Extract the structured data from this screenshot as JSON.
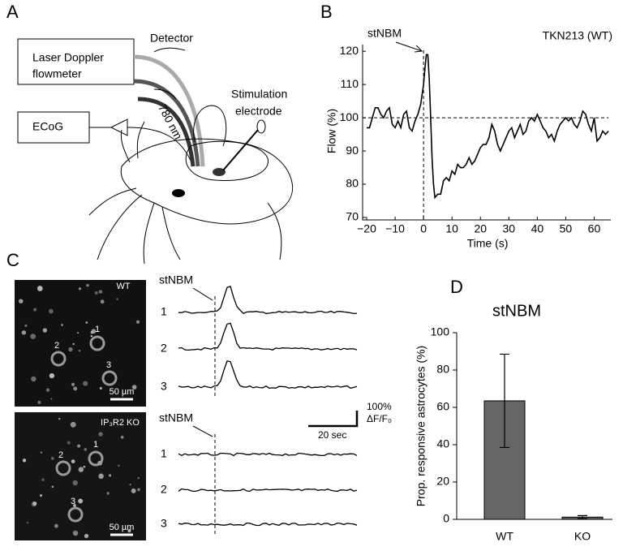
{
  "panel_a": {
    "label": "A",
    "flowmeter": [
      "Laser Doppler",
      "flowmeter"
    ],
    "ecog": "ECoG",
    "detector": "Detector",
    "wavelength": "780 nm",
    "electrode": [
      "Stimulation",
      "electrode"
    ]
  },
  "panel_c": {
    "label": "C",
    "wt": {
      "image_label": "WT",
      "scale": "50 µm",
      "cells": [
        "1",
        "2",
        "3"
      ],
      "stim": "stNBM",
      "traces": [
        "1",
        "2",
        "3"
      ]
    },
    "ko": {
      "image_label": "IP₃R2 KO",
      "scale": "50 µm",
      "cells": [
        "1",
        "2",
        "3"
      ],
      "stim": "stNBM",
      "traces": [
        "1",
        "2",
        "3"
      ]
    },
    "scale_bar": {
      "y": "100%",
      "y_unit": "ΔF/F₀",
      "x": "20 sec"
    }
  },
  "chart_data": [
    {
      "type": "line",
      "panel": "B",
      "xlabel": "Time (s)",
      "ylabel": "Flow (%)",
      "annotations": [
        "stNBM",
        "TKN213 (WT)"
      ],
      "reference_lines": {
        "x": 0,
        "y": 100
      },
      "xlim": [
        -20,
        65
      ],
      "ylim": [
        70,
        122
      ],
      "xticks": [
        {
          "value": -20,
          "label": "−20"
        },
        {
          "value": -10,
          "label": "−10"
        },
        0,
        10,
        20,
        30,
        40,
        50,
        60
      ],
      "yticks": [
        70,
        80,
        90,
        100,
        110,
        120
      ],
      "x": [
        -20,
        -19,
        -18,
        -17,
        -16,
        -15,
        -14,
        -13,
        -12,
        -11,
        -10,
        -9,
        -8,
        -7,
        -6,
        -5,
        -4,
        -3,
        -2,
        -1,
        0,
        0.5,
        1,
        1.5,
        2,
        2.5,
        3,
        3.5,
        4,
        5,
        6,
        7,
        8,
        9,
        10,
        11,
        12,
        13,
        14,
        15,
        16,
        17,
        18,
        19,
        20,
        21,
        22,
        23,
        24,
        25,
        26,
        27,
        28,
        29,
        30,
        31,
        32,
        33,
        34,
        35,
        36,
        37,
        38,
        39,
        40,
        41,
        42,
        43,
        44,
        45,
        46,
        47,
        48,
        49,
        50,
        51,
        52,
        53,
        54,
        55,
        56,
        57,
        58,
        59,
        60,
        61,
        62,
        63,
        64,
        65
      ],
      "series": [
        {
          "color": "#000000",
          "values": [
            97,
            97,
            100,
            103,
            103,
            101,
            100,
            102,
            103,
            98,
            97,
            99,
            97,
            101,
            102,
            97,
            96,
            99,
            101,
            104,
            110,
            115,
            119,
            119,
            112,
            100,
            88,
            80,
            76,
            77,
            77,
            81,
            82,
            81,
            84,
            83,
            86,
            85,
            85,
            86,
            88,
            86,
            87,
            89,
            91,
            92,
            92,
            94,
            98,
            96,
            92,
            90,
            92,
            94,
            96,
            97,
            94,
            96,
            98,
            95,
            96,
            99,
            100,
            99,
            101,
            99,
            97,
            96,
            94,
            95,
            93,
            96,
            98,
            99,
            100,
            99,
            100,
            98,
            97,
            99,
            102,
            101,
            98,
            96,
            100,
            93,
            94,
            96,
            95,
            96
          ]
        }
      ]
    },
    {
      "type": "bar",
      "panel": "D",
      "title": "stNBM",
      "ylabel": "Prop. responsive astrocytes (%)",
      "categories": [
        "WT",
        "KO"
      ],
      "values": [
        63.5,
        1.2
      ],
      "errors": [
        25,
        0.8
      ],
      "color": "#666666",
      "ylim": [
        0,
        100
      ],
      "yticks": [
        0,
        20,
        40,
        60,
        80,
        100
      ]
    }
  ]
}
